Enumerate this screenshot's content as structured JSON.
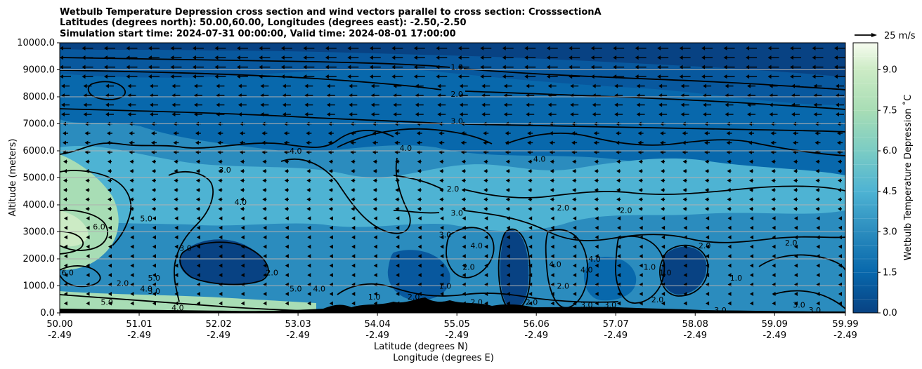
{
  "chart_data": {
    "type": "heatmap",
    "title_lines": [
      "Wetbulb Temperature Depression cross section and wind vectors parallel to cross section: CrosssectionA",
      "Latitudes (degrees north): 50.00,60.00, Longitudes (degrees east): -2.50,-2.50",
      "Simulation start time: 2024-07-31 00:00:00, Valid time: 2024-08-01 17:00:00"
    ],
    "xlabel_lines": [
      "Latitude (degrees N)",
      "Longitude (degrees E)"
    ],
    "ylabel": "Altitude (meters)",
    "colorbar_label": "Wetbulb Temperature Depression $^\\circ$C",
    "colorbar_label_display": "Wetbulb Temperature Depression ˚C",
    "colorbar_range": [
      0,
      10
    ],
    "colorbar_ticks": [
      "0.0",
      "1.5",
      "3.0",
      "4.5",
      "6.0",
      "7.5",
      "9.0"
    ],
    "colorbar_levels": 20,
    "wind_reference": "25 m/s",
    "ylim": [
      0,
      10000
    ],
    "y_ticks": [
      "0.0",
      "1000.0",
      "2000.0",
      "3000.0",
      "4000.0",
      "5000.0",
      "6000.0",
      "7000.0",
      "8000.0",
      "9000.0",
      "10000.0"
    ],
    "x_ticks": [
      {
        "lat": "50.00",
        "lon": "-2.49"
      },
      {
        "lat": "51.01",
        "lon": "-2.49"
      },
      {
        "lat": "52.02",
        "lon": "-2.49"
      },
      {
        "lat": "53.03",
        "lon": "-2.49"
      },
      {
        "lat": "54.04",
        "lon": "-2.49"
      },
      {
        "lat": "55.05",
        "lon": "-2.49"
      },
      {
        "lat": "56.06",
        "lon": "-2.49"
      },
      {
        "lat": "57.07",
        "lon": "-2.49"
      },
      {
        "lat": "58.08",
        "lon": "-2.49"
      },
      {
        "lat": "59.09",
        "lon": "-2.49"
      },
      {
        "lat": "59.99",
        "lon": "-2.49"
      }
    ],
    "grid": "horizontal",
    "colormap": "GnBu_r",
    "colors": {
      "low": "#084283",
      "mid": "#43a5cb",
      "high": "#f7fcf0",
      "terrain": "#000000",
      "gridline": "#b0b0b0"
    },
    "contour_labels": [
      {
        "text": "1.0",
        "x": 55.05,
        "y": 9100
      },
      {
        "text": "2.0",
        "x": 55.05,
        "y": 8100
      },
      {
        "text": "3.0",
        "x": 55.05,
        "y": 7100
      },
      {
        "text": "4.0",
        "x": 53.0,
        "y": 6000
      },
      {
        "text": "4.0",
        "x": 54.4,
        "y": 6100
      },
      {
        "text": "2.0",
        "x": 55.0,
        "y": 4600
      },
      {
        "text": "3.0",
        "x": 55.05,
        "y": 3700
      },
      {
        "text": "4.0",
        "x": 56.1,
        "y": 5700
      },
      {
        "text": "2.0",
        "x": 56.4,
        "y": 3900
      },
      {
        "text": "2.0",
        "x": 57.2,
        "y": 3800
      },
      {
        "text": "6.0",
        "x": 50.5,
        "y": 3200
      },
      {
        "text": "5.0",
        "x": 51.1,
        "y": 3500
      },
      {
        "text": "3.0",
        "x": 52.1,
        "y": 5300
      },
      {
        "text": "4.0",
        "x": 52.3,
        "y": 4100
      },
      {
        "text": "3.0",
        "x": 51.6,
        "y": 2400
      },
      {
        "text": "6.0",
        "x": 50.1,
        "y": 1500
      },
      {
        "text": "5.0",
        "x": 51.2,
        "y": 1300
      },
      {
        "text": "4.0",
        "x": 51.1,
        "y": 900
      },
      {
        "text": "3.0",
        "x": 51.2,
        "y": 800
      },
      {
        "text": "2.0",
        "x": 50.8,
        "y": 1100
      },
      {
        "text": "5.0",
        "x": 50.6,
        "y": 400
      },
      {
        "text": "4.0",
        "x": 51.5,
        "y": 200
      },
      {
        "text": "2.0",
        "x": 52.7,
        "y": 1500
      },
      {
        "text": "5.0",
        "x": 53.0,
        "y": 900
      },
      {
        "text": "4.0",
        "x": 53.3,
        "y": 900
      },
      {
        "text": "1.0",
        "x": 54.0,
        "y": 600
      },
      {
        "text": "2.0",
        "x": 54.5,
        "y": 600
      },
      {
        "text": "4.0",
        "x": 55.3,
        "y": 2500
      },
      {
        "text": "2.0",
        "x": 55.2,
        "y": 1700
      },
      {
        "text": "1.0",
        "x": 54.9,
        "y": 1000
      },
      {
        "text": "3.0",
        "x": 54.9,
        "y": 2900
      },
      {
        "text": "2.0",
        "x": 55.3,
        "y": 400
      },
      {
        "text": "2.0",
        "x": 56.0,
        "y": 400
      },
      {
        "text": "4.0",
        "x": 56.3,
        "y": 1800
      },
      {
        "text": "2.0",
        "x": 56.4,
        "y": 1000
      },
      {
        "text": "4.0",
        "x": 56.7,
        "y": 1600
      },
      {
        "text": "4.0",
        "x": 56.8,
        "y": 2000
      },
      {
        "text": "3.0",
        "x": 56.7,
        "y": 300
      },
      {
        "text": "3.0",
        "x": 57.0,
        "y": 300
      },
      {
        "text": "1.0",
        "x": 57.5,
        "y": 1700
      },
      {
        "text": "1.0",
        "x": 57.7,
        "y": 1500
      },
      {
        "text": "2.0",
        "x": 57.6,
        "y": 500
      },
      {
        "text": "2.0",
        "x": 58.2,
        "y": 2500
      },
      {
        "text": "1.0",
        "x": 58.6,
        "y": 1300
      },
      {
        "text": "3.0",
        "x": 58.4,
        "y": 100
      },
      {
        "text": "2.0",
        "x": 59.3,
        "y": 2600
      },
      {
        "text": "3.0",
        "x": 59.4,
        "y": 300
      },
      {
        "text": "3.0",
        "x": 59.6,
        "y": 100
      }
    ]
  }
}
